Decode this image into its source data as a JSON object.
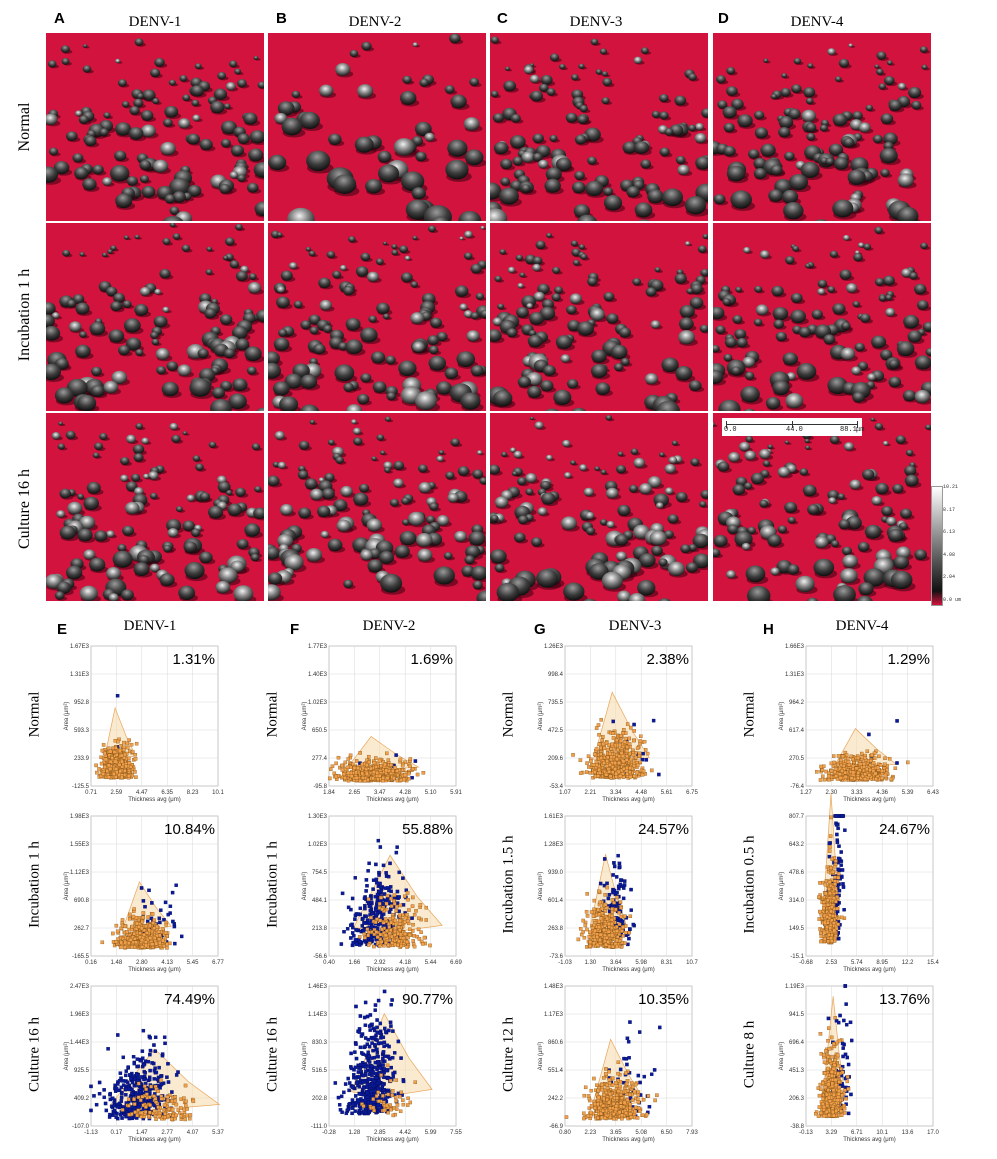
{
  "top": {
    "panels": [
      "A",
      "B",
      "C",
      "D"
    ],
    "columns": [
      "DENV-1",
      "DENV-2",
      "DENV-3",
      "DENV-4"
    ],
    "rows": [
      "Normal",
      "Incubation 1 h",
      "Culture 16 h"
    ],
    "scale_bar": {
      "ticks": [
        "0.0",
        "44.0",
        "88.1"
      ],
      "unit": "μm"
    },
    "color_scale": {
      "labels": [
        "10.21",
        "8.17",
        "6.13",
        "4.08",
        "2.04",
        "0.0 um"
      ]
    },
    "colors": {
      "substrate": "#d2133d",
      "cell": "#9a9a9a"
    }
  },
  "bottom": {
    "panels": [
      "E",
      "F",
      "G",
      "H"
    ],
    "columns": [
      "DENV-1",
      "DENV-2",
      "DENV-3",
      "DENV-4"
    ],
    "xlabel": "Thickness avg (μm)",
    "ylabel": "Area (μm²)",
    "colors": {
      "blue": "#0a1a9c",
      "orange": "#f0a04a",
      "gate": "#f5d9a8"
    }
  },
  "chart_data": [
    {
      "type": "scatter",
      "panel": "E",
      "column": "DENV-1",
      "row_label": "Normal",
      "percent": "1.31%",
      "xticks": [
        "0.71",
        "2.59",
        "4.47",
        "6.35",
        "8.23",
        "10.1"
      ],
      "yticks": [
        "1.67E3",
        "1.31E3",
        "952.8",
        "593.3",
        "233.9",
        "-125.5"
      ],
      "xlim": [
        0.71,
        10.1
      ],
      "ylim": [
        -125.5,
        1670
      ],
      "orange_fraction": 0.987,
      "centroid": [
        2.6,
        300
      ],
      "spread": [
        0.55,
        180
      ],
      "tilt": 0.0
    },
    {
      "type": "scatter",
      "panel": "F",
      "column": "DENV-2",
      "row_label": "Normal",
      "percent": "1.69%",
      "xticks": [
        "1.84",
        "2.65",
        "3.47",
        "4.28",
        "5.10",
        "5.91"
      ],
      "yticks": [
        "1.77E3",
        "1.40E3",
        "1.02E3",
        "650.5",
        "277.4",
        "-95.8"
      ],
      "xlim": [
        1.84,
        5.91
      ],
      "ylim": [
        -95.8,
        1770
      ],
      "orange_fraction": 0.983,
      "centroid": [
        3.3,
        180
      ],
      "spread": [
        0.55,
        120
      ],
      "tilt": 0.0
    },
    {
      "type": "scatter",
      "panel": "G",
      "column": "DENV-3",
      "row_label": "Normal",
      "percent": "2.38%",
      "xticks": [
        "1.07",
        "2.21",
        "3.34",
        "4.48",
        "5.61",
        "6.75"
      ],
      "yticks": [
        "1.26E3",
        "998.4",
        "735.5",
        "472.5",
        "209.6",
        "-53.4"
      ],
      "xlim": [
        1.07,
        6.75
      ],
      "ylim": [
        -53.4,
        1260
      ],
      "orange_fraction": 0.976,
      "centroid": [
        3.3,
        250
      ],
      "spread": [
        0.6,
        180
      ],
      "tilt": 0.0
    },
    {
      "type": "scatter",
      "panel": "H",
      "column": "DENV-4",
      "row_label": "Normal",
      "percent": "1.29%",
      "xticks": [
        "1.27",
        "2.30",
        "3.33",
        "4.36",
        "5.39",
        "6.43"
      ],
      "yticks": [
        "1.66E3",
        "1.31E3",
        "964.2",
        "617.4",
        "270.5",
        "-76.4"
      ],
      "xlim": [
        1.27,
        6.43
      ],
      "ylim": [
        -76.4,
        1660
      ],
      "orange_fraction": 0.987,
      "centroid": [
        3.4,
        220
      ],
      "spread": [
        0.6,
        130
      ],
      "tilt": 0.0
    },
    {
      "type": "scatter",
      "panel": "E",
      "column": "DENV-1",
      "row_label": "Incubation 1 h",
      "percent": "10.84%",
      "xticks": [
        "0.16",
        "1.48",
        "2.80",
        "4.13",
        "5.45",
        "6.77"
      ],
      "yticks": [
        "1.98E3",
        "1.55E3",
        "1.12E3",
        "690.8",
        "262.7",
        "-165.5"
      ],
      "xlim": [
        0.16,
        6.77
      ],
      "ylim": [
        -165.5,
        1980
      ],
      "orange_fraction": 0.892,
      "centroid": [
        2.8,
        330
      ],
      "spread": [
        0.6,
        200
      ],
      "tilt": 0.0
    },
    {
      "type": "scatter",
      "panel": "F",
      "column": "DENV-2",
      "row_label": "Incubation 1 h",
      "percent": "55.88%",
      "xticks": [
        "0.40",
        "1.66",
        "2.92",
        "4.18",
        "5.44",
        "6.69"
      ],
      "yticks": [
        "1.30E3",
        "1.02E3",
        "754.5",
        "484.1",
        "213.8",
        "-56.6"
      ],
      "xlim": [
        0.4,
        6.69
      ],
      "ylim": [
        -56.6,
        1300
      ],
      "orange_fraction": 0.441,
      "centroid": [
        2.7,
        280
      ],
      "spread": [
        0.7,
        200
      ],
      "tilt": 0.35
    },
    {
      "type": "scatter",
      "panel": "G",
      "column": "DENV-3",
      "row_label": "Incubation 1.5 h",
      "percent": "24.57%",
      "xticks": [
        "-1.03",
        "1.30",
        "3.64",
        "5.98",
        "8.31",
        "10.7"
      ],
      "yticks": [
        "1.61E3",
        "1.28E3",
        "939.0",
        "601.4",
        "263.8",
        "-73.6"
      ],
      "xlim": [
        -1.03,
        10.7
      ],
      "ylim": [
        -73.6,
        1610
      ],
      "orange_fraction": 0.754,
      "centroid": [
        2.6,
        350
      ],
      "spread": [
        0.8,
        250
      ],
      "tilt": 0.35
    },
    {
      "type": "scatter",
      "panel": "H",
      "column": "DENV-4",
      "row_label": "Incubation 0.5 h",
      "percent": "24.67%",
      "xticks": [
        "-0.68",
        "2.53",
        "5.74",
        "8.95",
        "12.2",
        "15.4"
      ],
      "yticks": [
        "807.7",
        "643.2",
        "478.6",
        "314.0",
        "149.5",
        "-15.1"
      ],
      "xlim": [
        -0.68,
        15.4
      ],
      "ylim": [
        -15.1,
        807.7
      ],
      "orange_fraction": 0.753,
      "centroid": [
        2.3,
        300
      ],
      "spread": [
        0.5,
        200
      ],
      "tilt": 0.6
    },
    {
      "type": "scatter",
      "panel": "E",
      "column": "DENV-1",
      "row_label": "Culture 16 h",
      "percent": "74.49%",
      "xticks": [
        "-1.13",
        "0.17",
        "1.47",
        "2.77",
        "4.07",
        "5.37"
      ],
      "yticks": [
        "2.47E3",
        "1.96E3",
        "1.44E3",
        "925.5",
        "409.2",
        "-107.0"
      ],
      "xlim": [
        -1.13,
        5.37
      ],
      "ylim": [
        -107,
        2470
      ],
      "orange_fraction": 0.255,
      "centroid": [
        1.2,
        350
      ],
      "spread": [
        0.9,
        300
      ],
      "tilt": 0.35
    },
    {
      "type": "scatter",
      "panel": "F",
      "column": "DENV-2",
      "row_label": "Culture 16 h",
      "percent": "90.77%",
      "xticks": [
        "-0.28",
        "1.28",
        "2.85",
        "4.42",
        "5.99",
        "7.55"
      ],
      "yticks": [
        "1.46E3",
        "1.14E3",
        "830.3",
        "516.5",
        "202.8",
        "-111.0"
      ],
      "xlim": [
        -0.28,
        7.55
      ],
      "ylim": [
        -111,
        1460
      ],
      "orange_fraction": 0.092,
      "centroid": [
        2.3,
        350
      ],
      "spread": [
        0.8,
        250
      ],
      "tilt": 0.35
    },
    {
      "type": "scatter",
      "panel": "G",
      "column": "DENV-3",
      "row_label": "Culture 12 h",
      "percent": "10.35%",
      "xticks": [
        "0.80",
        "2.23",
        "3.65",
        "5.08",
        "6.50",
        "7.93"
      ],
      "yticks": [
        "1.48E3",
        "1.17E3",
        "860.6",
        "551.4",
        "242.2",
        "-66.9"
      ],
      "xlim": [
        0.8,
        7.93
      ],
      "ylim": [
        -66.9,
        1480
      ],
      "orange_fraction": 0.896,
      "centroid": [
        3.5,
        250
      ],
      "spread": [
        0.7,
        200
      ],
      "tilt": 0.0
    },
    {
      "type": "scatter",
      "panel": "H",
      "column": "DENV-4",
      "row_label": "Culture 8 h",
      "percent": "13.76%",
      "xticks": [
        "-0.13",
        "3.29",
        "6.71",
        "10.1",
        "13.6",
        "17.0"
      ],
      "yticks": [
        "1.19E3",
        "941.5",
        "696.4",
        "451.3",
        "206.3",
        "-38.8"
      ],
      "xlim": [
        -0.13,
        17.0
      ],
      "ylim": [
        -38.8,
        1190
      ],
      "orange_fraction": 0.862,
      "centroid": [
        3.3,
        300
      ],
      "spread": [
        0.7,
        250
      ],
      "tilt": 0.55
    }
  ]
}
